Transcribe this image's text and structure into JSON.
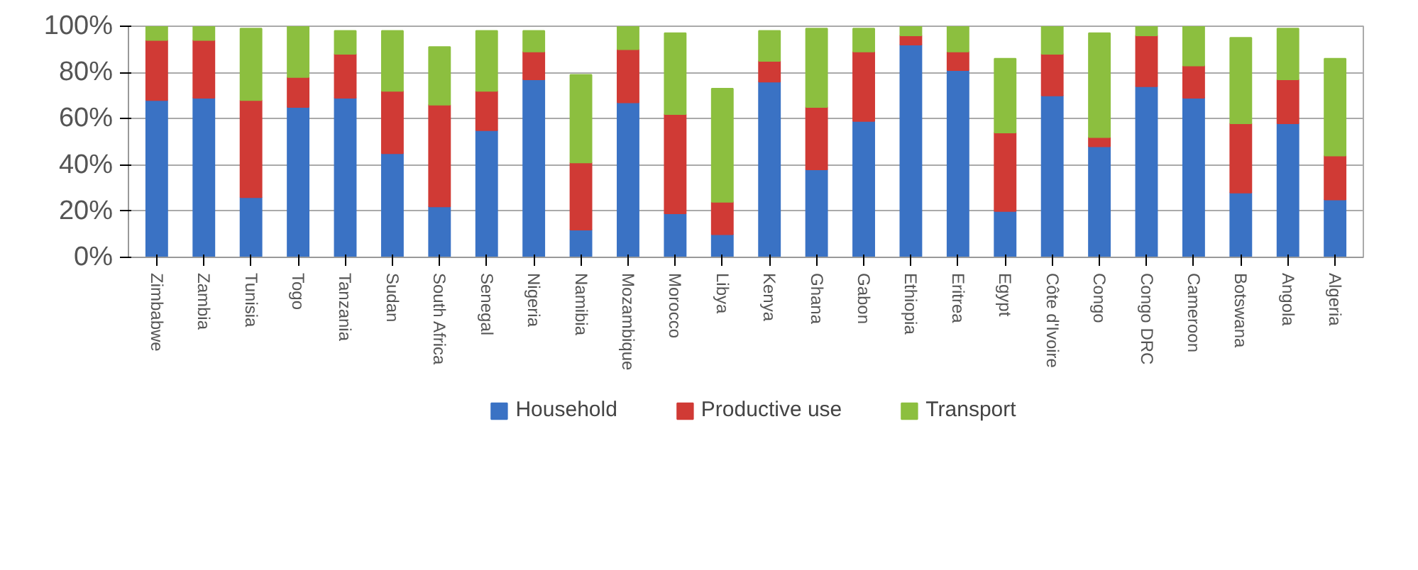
{
  "chart_data": {
    "type": "bar",
    "stacked": true,
    "categories": [
      "Zimbabwe",
      "Zambia",
      "Tunisia",
      "Togo",
      "Tanzania",
      "Sudan",
      "South Africa",
      "Senegal",
      "Nigeria",
      "Namibia",
      "Mozambique",
      "Morocco",
      "Libya",
      "Kenya",
      "Ghana",
      "Gabon",
      "Ethiopia",
      "Eritrea",
      "Egypt",
      "Côte d'Ivoire",
      "Congo",
      "Congo DRC",
      "Cameroon",
      "Botswana",
      "Angola",
      "Algeria"
    ],
    "series": [
      {
        "name": "Household",
        "color": "#3a72c4",
        "values": [
          68,
          69,
          26,
          65,
          69,
          45,
          22,
          55,
          77,
          12,
          67,
          19,
          10,
          76,
          38,
          59,
          92,
          81,
          20,
          70,
          48,
          74,
          69,
          28,
          58,
          25
        ]
      },
      {
        "name": "Productive use",
        "color": "#d03a35",
        "values": [
          26,
          25,
          42,
          13,
          19,
          27,
          44,
          17,
          12,
          29,
          23,
          43,
          14,
          9,
          27,
          30,
          4,
          8,
          34,
          18,
          4,
          22,
          14,
          30,
          19,
          19
        ]
      },
      {
        "name": "Transport",
        "color": "#8cbf3f",
        "values": [
          6,
          6,
          31,
          22,
          10,
          26,
          25,
          26,
          9,
          38,
          10,
          35,
          49,
          13,
          34,
          10,
          4,
          11,
          32,
          12,
          45,
          4,
          17,
          37,
          22,
          42
        ]
      }
    ],
    "ylim": [
      0,
      100
    ],
    "yticks": [
      {
        "value": 0,
        "label": "0%"
      },
      {
        "value": 20,
        "label": "20%"
      },
      {
        "value": 40,
        "label": "40%"
      },
      {
        "value": 60,
        "label": "60%"
      },
      {
        "value": 80,
        "label": "80%"
      },
      {
        "value": 100,
        "label": "100%"
      }
    ],
    "grid": "y",
    "legend": "bottom"
  }
}
